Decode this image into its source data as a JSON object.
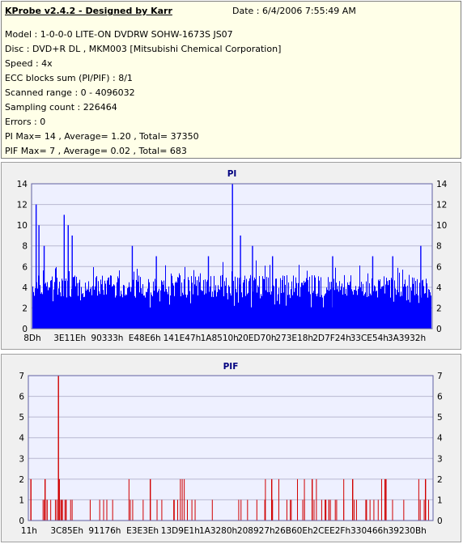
{
  "header": {
    "title": "KProbe v2.4.2 - Designed by Karr",
    "date": "Date : 6/4/2006 7:55:49 AM",
    "lines": [
      "Model : 1-0-0-0 LITE-ON DVDRW SOHW-1673S JS07",
      "Disc : DVD+R DL , MKM003 [Mitsubishi Chemical Corporation]",
      "Speed : 4x",
      "ECC blocks sum (PI/PIF) : 8/1",
      "Scanned range : 0 - 4096032",
      "Sampling count : 226464",
      "Errors : 0",
      "PI Max= 14 , Average= 1.20 , Total= 37350",
      "PIF Max= 7 , Average= 0.02 , Total= 683"
    ]
  },
  "chart_data": [
    {
      "type": "bar",
      "title": "PI",
      "color": "#0000ff",
      "ylim": [
        0,
        14
      ],
      "yticks": [
        0,
        2,
        4,
        6,
        8,
        10,
        12,
        14
      ],
      "xtick_labels": [
        "8Dh",
        "3E11Eh",
        "90333h",
        "E48E6h",
        "141E47h",
        "1A8510h",
        "20ED70h",
        "273E18h",
        "2D7F24h",
        "33CE54h",
        "3A3932h"
      ],
      "x_range": [
        0,
        4096032
      ],
      "spikes": [
        {
          "x": 0.01,
          "value": 12
        },
        {
          "x": 0.017,
          "value": 10
        },
        {
          "x": 0.08,
          "value": 11
        },
        {
          "x": 0.09,
          "value": 10
        },
        {
          "x": 0.1,
          "value": 9
        },
        {
          "x": 0.03,
          "value": 8
        },
        {
          "x": 0.25,
          "value": 8
        },
        {
          "x": 0.31,
          "value": 7
        },
        {
          "x": 0.44,
          "value": 7
        },
        {
          "x": 0.5,
          "value": 14
        },
        {
          "x": 0.52,
          "value": 9
        },
        {
          "x": 0.55,
          "value": 8
        },
        {
          "x": 0.6,
          "value": 7
        },
        {
          "x": 0.75,
          "value": 7
        },
        {
          "x": 0.85,
          "value": 7
        },
        {
          "x": 0.9,
          "value": 7
        },
        {
          "x": 0.97,
          "value": 8
        }
      ],
      "baseline_typical": 4
    },
    {
      "type": "bar",
      "title": "PIF",
      "color": "#d00000",
      "ylim": [
        0,
        7
      ],
      "yticks": [
        0,
        1,
        2,
        3,
        4,
        5,
        6,
        7
      ],
      "xtick_labels": [
        "11h",
        "3C85Eh",
        "91176h",
        "E3E3Eh",
        "13D9E1h",
        "1A3280h",
        "208927h",
        "26B60Eh",
        "2CEE2Fh",
        "330466h",
        "39230Bh"
      ],
      "x_range": [
        0,
        4096032
      ],
      "spikes": [
        {
          "x": 0.005,
          "value": 2
        },
        {
          "x": 0.04,
          "value": 2
        },
        {
          "x": 0.073,
          "value": 7
        },
        {
          "x": 0.075,
          "value": 2
        },
        {
          "x": 0.3,
          "value": 2
        },
        {
          "x": 0.6,
          "value": 2
        },
        {
          "x": 0.7,
          "value": 2
        },
        {
          "x": 0.8,
          "value": 2
        },
        {
          "x": 0.88,
          "value": 2
        },
        {
          "x": 0.98,
          "value": 2
        }
      ]
    }
  ]
}
